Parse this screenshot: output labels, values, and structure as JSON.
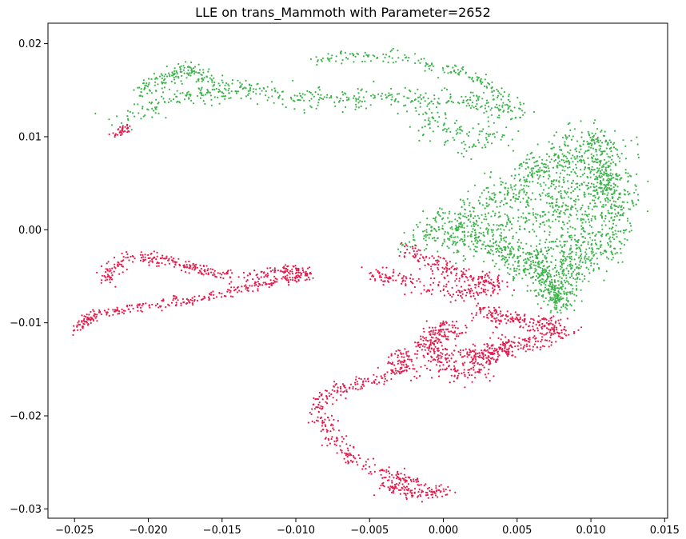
{
  "chart_data": {
    "type": "scatter",
    "title": "LLE on trans_Mammoth with Parameter=2652",
    "xlabel": "",
    "ylabel": "",
    "xlim": [
      -0.0268,
      0.0152
    ],
    "ylim": [
      -0.031,
      0.0222
    ],
    "grid": false,
    "legend": "none",
    "x_ticks": [
      "−0.025",
      "−0.020",
      "−0.015",
      "−0.010",
      "−0.005",
      "0.000",
      "0.005",
      "0.010",
      "0.015"
    ],
    "x_tick_values": [
      -0.025,
      -0.02,
      -0.015,
      -0.01,
      -0.005,
      0.0,
      0.005,
      0.01,
      0.015
    ],
    "y_ticks": [
      "0.02",
      "0.01",
      "0.00",
      "−0.01",
      "−0.02",
      "−0.03"
    ],
    "y_tick_values": [
      0.02,
      0.01,
      0.0,
      -0.01,
      -0.02,
      -0.03
    ],
    "series": [
      {
        "color": "#3cb44b",
        "clusters": [
          {
            "points": [
              [
                -0.0215,
                0.0118
              ],
              [
                -0.0205,
                0.0128
              ],
              [
                -0.019,
                0.0135
              ],
              [
                -0.0175,
                0.0142
              ],
              [
                -0.016,
                0.0146
              ],
              [
                -0.015,
                0.0149
              ],
              [
                -0.014,
                0.0152
              ],
              [
                -0.0125,
                0.015
              ],
              [
                -0.011,
                0.0145
              ],
              [
                -0.0095,
                0.014
              ],
              [
                -0.008,
                0.0142
              ],
              [
                -0.0065,
                0.0138
              ],
              [
                -0.005,
                0.0142
              ],
              [
                -0.0035,
                0.0145
              ],
              [
                -0.002,
                0.014
              ],
              [
                -0.0005,
                0.0138
              ],
              [
                0.001,
                0.0142
              ],
              [
                0.0025,
                0.0135
              ],
              [
                0.004,
                0.013
              ],
              [
                0.005,
                0.0125
              ]
            ],
            "spread": 0.001,
            "n": 460
          },
          {
            "points": [
              [
                -0.0205,
                0.0148
              ],
              [
                -0.0195,
                0.0158
              ],
              [
                -0.0185,
                0.0165
              ],
              [
                -0.0175,
                0.0172
              ],
              [
                -0.0165,
                0.0168
              ],
              [
                -0.016,
                0.0162
              ]
            ],
            "spread": 0.0007,
            "n": 150
          },
          {
            "points": [
              [
                -0.0085,
                0.0185
              ],
              [
                -0.007,
                0.0186
              ],
              [
                -0.0055,
                0.0187
              ],
              [
                -0.004,
                0.0187
              ],
              [
                -0.0025,
                0.0184
              ],
              [
                -0.001,
                0.0178
              ],
              [
                0.0005,
                0.0172
              ],
              [
                0.0015,
                0.0166
              ],
              [
                0.0025,
                0.0158
              ],
              [
                0.0035,
                0.0148
              ],
              [
                0.0045,
                0.0136
              ]
            ],
            "spread": 0.0006,
            "n": 170
          },
          {
            "points": [
              [
                -0.001,
                0.0125
              ],
              [
                -0.0005,
                0.0112
              ],
              [
                0.0,
                0.0102
              ],
              [
                0.0015,
                0.0095
              ],
              [
                0.003,
                0.0098
              ],
              [
                0.0045,
                0.0105
              ]
            ],
            "spread": 0.0012,
            "n": 120
          },
          {
            "points": [
              [
                -0.002,
                -0.0015
              ],
              [
                0.0,
                0.0005
              ],
              [
                0.002,
                0.002
              ],
              [
                0.004,
                0.004
              ],
              [
                0.006,
                0.006
              ],
              [
                0.008,
                0.008
              ],
              [
                0.0095,
                0.0098
              ],
              [
                0.011,
                0.0095
              ],
              [
                0.012,
                0.004
              ],
              [
                0.012,
                0.0
              ],
              [
                0.0105,
                -0.0025
              ],
              [
                0.0085,
                -0.0045
              ],
              [
                0.007,
                -0.006
              ],
              [
                0.006,
                -0.004
              ],
              [
                0.0045,
                -0.0025
              ],
              [
                0.002,
                -0.0015
              ],
              [
                0.0,
                -0.0005
              ],
              [
                0.005,
                0.001
              ],
              [
                0.008,
                0.001
              ],
              [
                0.009,
                0.005
              ],
              [
                0.007,
                0.0035
              ],
              [
                0.01,
                -0.0005
              ],
              [
                0.0075,
                -0.002
              ],
              [
                0.005,
                -0.003
              ],
              [
                0.003,
                0.0
              ],
              [
                0.0065,
                0.007
              ],
              [
                0.0105,
                0.007
              ],
              [
                0.011,
                0.0025
              ]
            ],
            "spread": 0.0014,
            "n": 1700
          },
          {
            "points": [
              [
                0.0065,
                -0.004
              ],
              [
                0.007,
                -0.0055
              ],
              [
                0.0075,
                -0.007
              ],
              [
                0.008,
                -0.008
              ],
              [
                0.0085,
                -0.0045
              ],
              [
                0.009,
                -0.002
              ],
              [
                0.0108,
                0.004
              ],
              [
                0.0112,
                0.006
              ],
              [
                0.0105,
                0.009
              ],
              [
                0.0115,
                0.0015
              ]
            ],
            "spread": 0.0009,
            "n": 500
          }
        ]
      },
      {
        "color": "#e6194b",
        "clusters": [
          {
            "points": [
              [
                -0.0222,
                0.0102
              ],
              [
                -0.0218,
                0.0108
              ],
              [
                -0.0213,
                0.011
              ]
            ],
            "spread": 0.0004,
            "n": 40
          },
          {
            "points": [
              [
                -0.0228,
                -0.0055
              ],
              [
                -0.0225,
                -0.0042
              ],
              [
                -0.022,
                -0.0035
              ],
              [
                -0.0212,
                -0.003
              ],
              [
                -0.02,
                -0.003
              ],
              [
                -0.019,
                -0.0032
              ],
              [
                -0.018,
                -0.0036
              ],
              [
                -0.017,
                -0.004
              ],
              [
                -0.0158,
                -0.0045
              ],
              [
                -0.0145,
                -0.0048
              ],
              [
                -0.013,
                -0.0048
              ],
              [
                -0.0115,
                -0.0046
              ],
              [
                -0.0102,
                -0.0042
              ],
              [
                -0.009,
                -0.0048
              ]
            ],
            "spread": 0.0005,
            "n": 300
          },
          {
            "points": [
              [
                -0.0248,
                -0.0108
              ],
              [
                -0.0242,
                -0.0098
              ],
              [
                -0.0235,
                -0.009
              ],
              [
                -0.0222,
                -0.0087
              ],
              [
                -0.021,
                -0.0083
              ],
              [
                -0.0195,
                -0.008
              ],
              [
                -0.018,
                -0.0078
              ],
              [
                -0.0165,
                -0.0074
              ],
              [
                -0.015,
                -0.0068
              ],
              [
                -0.0135,
                -0.0062
              ],
              [
                -0.012,
                -0.0057
              ],
              [
                -0.0105,
                -0.0053
              ],
              [
                -0.0095,
                -0.005
              ]
            ],
            "spread": 0.0005,
            "n": 300
          },
          {
            "points": [
              [
                -0.0025,
                -0.002
              ],
              [
                -0.0015,
                -0.003
              ],
              [
                0.0,
                -0.004
              ],
              [
                0.0015,
                -0.005
              ],
              [
                0.003,
                -0.0055
              ],
              [
                0.004,
                -0.006
              ],
              [
                -0.0045,
                -0.0048
              ],
              [
                -0.003,
                -0.0055
              ],
              [
                -0.001,
                -0.0065
              ],
              [
                0.001,
                -0.0068
              ],
              [
                0.0025,
                -0.0065
              ]
            ],
            "spread": 0.0007,
            "n": 330
          },
          {
            "points": [
              [
                0.0025,
                -0.009
              ],
              [
                0.004,
                -0.0095
              ],
              [
                0.0055,
                -0.0098
              ],
              [
                0.007,
                -0.0102
              ],
              [
                0.008,
                -0.0108
              ],
              [
                0.006,
                -0.012
              ],
              [
                0.004,
                -0.013
              ],
              [
                0.002,
                -0.0135
              ],
              [
                0.0,
                -0.0138
              ],
              [
                -0.001,
                -0.0125
              ],
              [
                -0.0005,
                -0.0112
              ],
              [
                0.001,
                -0.0105
              ],
              [
                -0.0025,
                -0.0135
              ],
              [
                -0.0035,
                -0.0145
              ],
              [
                0.0015,
                -0.0155
              ],
              [
                0.003,
                -0.0142
              ],
              [
                0.0045,
                -0.012
              ],
              [
                0.0005,
                -0.0145
              ]
            ],
            "spread": 0.0009,
            "n": 800
          },
          {
            "points": [
              [
                -0.0025,
                -0.0152
              ],
              [
                -0.004,
                -0.0158
              ],
              [
                -0.0055,
                -0.0165
              ],
              [
                -0.007,
                -0.017
              ],
              [
                -0.008,
                -0.0178
              ],
              [
                -0.0085,
                -0.019
              ],
              [
                -0.0082,
                -0.0205
              ],
              [
                -0.0075,
                -0.022
              ],
              [
                -0.007,
                -0.0235
              ],
              [
                -0.006,
                -0.0248
              ],
              [
                -0.0045,
                -0.0258
              ],
              [
                -0.003,
                -0.0265
              ],
              [
                -0.002,
                -0.027
              ],
              [
                -0.004,
                -0.0275
              ],
              [
                -0.0025,
                -0.0282
              ],
              [
                -0.001,
                -0.0284
              ],
              [
                0.0,
                -0.028
              ]
            ],
            "spread": 0.0006,
            "n": 420
          }
        ]
      }
    ]
  }
}
